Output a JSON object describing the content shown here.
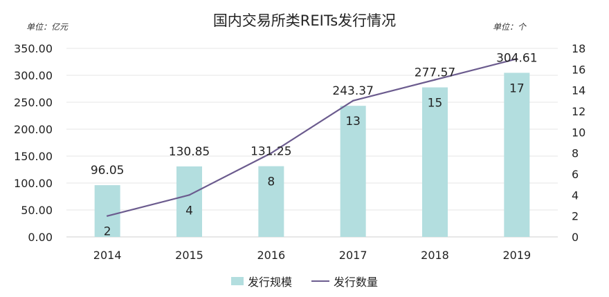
{
  "chart_data": {
    "type": "bar",
    "title": "国内交易所类REITs发行情况",
    "unit_left": "单位：亿元",
    "unit_right": "单位：个",
    "categories": [
      "2014",
      "2015",
      "2016",
      "2017",
      "2018",
      "2019"
    ],
    "series": [
      {
        "name": "发行规模",
        "type": "bar",
        "axis": "left",
        "values": [
          96.05,
          130.85,
          131.25,
          243.37,
          277.57,
          304.61
        ],
        "color": "#b3dedf"
      },
      {
        "name": "发行数量",
        "type": "line",
        "axis": "right",
        "values": [
          2,
          4,
          8,
          13,
          15,
          17
        ],
        "color": "#6b5b8e"
      }
    ],
    "y_left": {
      "min": 0,
      "max": 350,
      "step": 50,
      "tick_labels": [
        "0.00",
        "50.00",
        "100.00",
        "150.00",
        "200.00",
        "250.00",
        "300.00",
        "350.00"
      ]
    },
    "y_right": {
      "min": 0,
      "max": 18,
      "step": 2,
      "tick_labels": [
        "0",
        "2",
        "4",
        "6",
        "8",
        "10",
        "12",
        "14",
        "16",
        "18"
      ]
    },
    "bar_value_labels": [
      "96.05",
      "130.85",
      "131.25",
      "243.37",
      "277.57",
      "304.61"
    ],
    "line_value_labels": [
      "2",
      "4",
      "8",
      "13",
      "15",
      "17"
    ],
    "legend_position": "bottom",
    "grid": true,
    "grid_color": "#e6e6e6"
  }
}
